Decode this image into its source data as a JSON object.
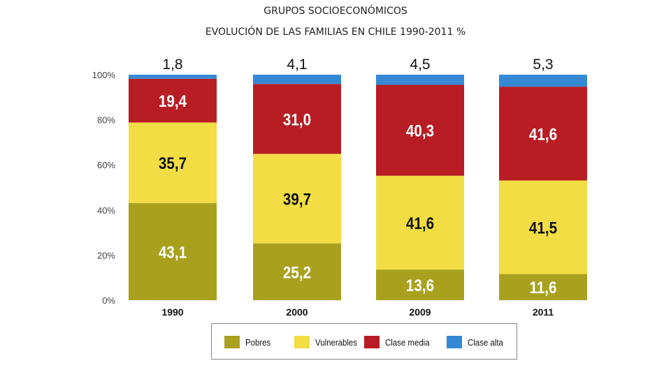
{
  "title": "GRUPOS SOCIOECONÓMICOS",
  "subtitle": "EVOLUCIÓN DE LAS FAMILIAS EN CHILE 1990-2011 %",
  "chart_data": {
    "type": "bar",
    "stacked": true,
    "categories": [
      "1990",
      "2000",
      "2009",
      "2011"
    ],
    "series": [
      {
        "name": "Pobres",
        "values": [
          43.1,
          25.2,
          13.6,
          11.6
        ],
        "labels": [
          "43,1",
          "25,2",
          "13,6",
          "11,6"
        ],
        "color": "#a9a11e",
        "label_color": "#ffffff"
      },
      {
        "name": "Vulnerables",
        "values": [
          35.7,
          39.7,
          41.6,
          41.5
        ],
        "labels": [
          "35,7",
          "39,7",
          "41,6",
          "41,5"
        ],
        "color": "#f2dd44",
        "label_color": "#111111"
      },
      {
        "name": "Clase media",
        "values": [
          19.4,
          31.0,
          40.3,
          41.6
        ],
        "labels": [
          "19,4",
          "31,0",
          "40,3",
          "41,6"
        ],
        "color": "#b81d24",
        "label_color": "#ffffff"
      },
      {
        "name": "Clase alta",
        "values": [
          1.8,
          4.1,
          4.5,
          5.3
        ],
        "labels": [
          "1,8",
          "4,1",
          "4,5",
          "5,3"
        ],
        "color": "#3589d4",
        "label_color": "#111111"
      }
    ],
    "yticks": [
      "0%",
      "20%",
      "40%",
      "60%",
      "80%",
      "100%"
    ],
    "ylim": [
      0,
      100
    ],
    "grid": false,
    "legend_position": "bottom"
  }
}
